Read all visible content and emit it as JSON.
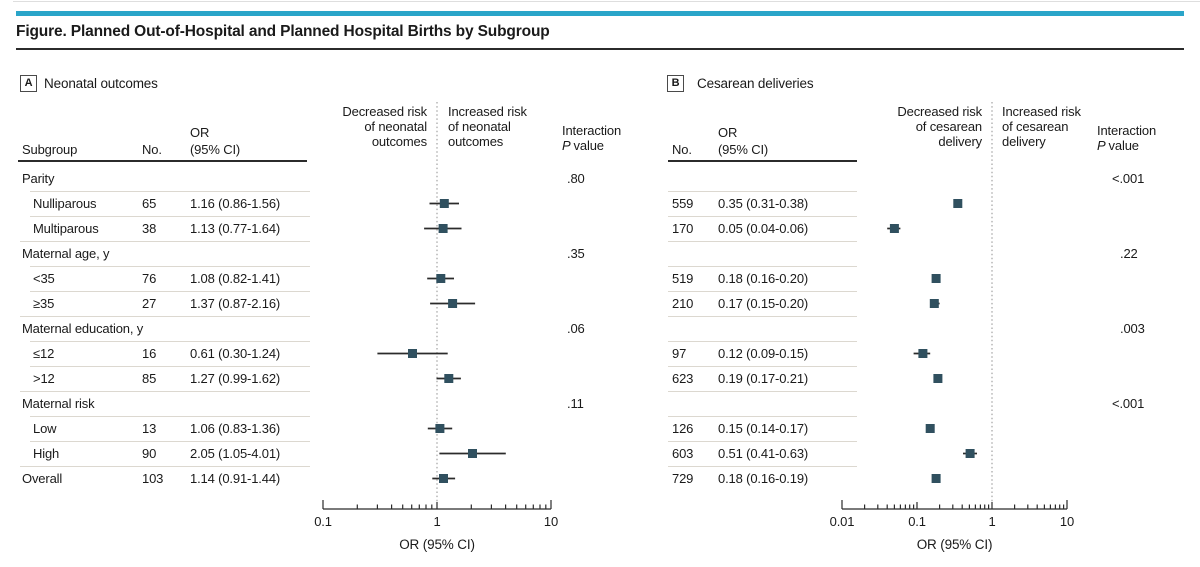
{
  "figure": {
    "title": "Figure. Planned Out-of-Hospital and Planned Hospital Births by Subgroup"
  },
  "colors": {
    "accent_teal": "#2AA5C9",
    "marker": "#30505F",
    "ci_line": "#2b2b2b",
    "rule_dark": "#2b2b2b",
    "row_separator": "#DCD8D0",
    "reference_line": "#8f8f8f",
    "text": "#1a1a1a"
  },
  "chart_data": [
    {
      "type": "forest",
      "panel_letter": "A",
      "panel_title": "Neonatal outcomes",
      "columns": {
        "subgroup": "Subgroup",
        "no": "No.",
        "or1": "OR",
        "or2": "(95% CI)"
      },
      "decreased_label": [
        "Decreased risk",
        "of neonatal",
        "outcomes"
      ],
      "increased_label": [
        "Increased risk",
        "of neonatal",
        "outcomes"
      ],
      "interaction_label": {
        "line1": "Interaction",
        "p": "P",
        "rest": "value"
      },
      "xlabel": "OR (95% CI)",
      "log_scale": true,
      "xlim": [
        0.1,
        10
      ],
      "x_ticks": [
        0.1,
        1,
        10
      ],
      "x_tick_labels": [
        "0.1",
        "1",
        "10"
      ],
      "ref_line": 1,
      "rows": [
        {
          "kind": "group",
          "label": "Parity",
          "p": ".80"
        },
        {
          "kind": "item",
          "label": "Nulliparous",
          "n": "65",
          "or_ci": "1.16 (0.86-1.56)",
          "est": 1.16,
          "lo": 0.86,
          "hi": 1.56
        },
        {
          "kind": "item",
          "label": "Multiparous",
          "n": "38",
          "or_ci": "1.13 (0.77-1.64)",
          "est": 1.13,
          "lo": 0.77,
          "hi": 1.64
        },
        {
          "kind": "group",
          "label": "Maternal age, y",
          "p": ".35"
        },
        {
          "kind": "item",
          "label": "<35",
          "n": "76",
          "or_ci": "1.08 (0.82-1.41)",
          "est": 1.08,
          "lo": 0.82,
          "hi": 1.41
        },
        {
          "kind": "item",
          "label": "≥35",
          "n": "27",
          "or_ci": "1.37 (0.87-2.16)",
          "est": 1.37,
          "lo": 0.87,
          "hi": 2.16
        },
        {
          "kind": "group",
          "label": "Maternal education, y",
          "p": ".06"
        },
        {
          "kind": "item",
          "label": "≤12",
          "n": "16",
          "or_ci": "0.61 (0.30-1.24)",
          "est": 0.61,
          "lo": 0.3,
          "hi": 1.24
        },
        {
          "kind": "item",
          "label": ">12",
          "n": "85",
          "or_ci": "1.27 (0.99-1.62)",
          "est": 1.27,
          "lo": 0.99,
          "hi": 1.62
        },
        {
          "kind": "group",
          "label": "Maternal risk",
          "p": ".11"
        },
        {
          "kind": "item",
          "label": "Low",
          "n": "13",
          "or_ci": "1.06 (0.83-1.36)",
          "est": 1.06,
          "lo": 0.83,
          "hi": 1.36
        },
        {
          "kind": "item",
          "label": "High",
          "n": "90",
          "or_ci": "2.05 (1.05-4.01)",
          "est": 2.05,
          "lo": 1.05,
          "hi": 4.01
        },
        {
          "kind": "overall",
          "label": "Overall",
          "n": "103",
          "or_ci": "1.14 (0.91-1.44)",
          "est": 1.14,
          "lo": 0.91,
          "hi": 1.44
        }
      ]
    },
    {
      "type": "forest",
      "panel_letter": "B",
      "panel_title": "Cesarean deliveries",
      "columns": {
        "no": "No.",
        "or1": "OR",
        "or2": "(95% CI)"
      },
      "decreased_label": [
        "Decreased risk",
        "of cesarean",
        "delivery"
      ],
      "increased_label": [
        "Increased risk",
        "of cesarean",
        "delivery"
      ],
      "interaction_label": {
        "line1": "Interaction",
        "p": "P",
        "rest": "value"
      },
      "xlabel": "OR (95% CI)",
      "log_scale": true,
      "xlim": [
        0.01,
        10
      ],
      "x_ticks": [
        0.01,
        0.1,
        1,
        10
      ],
      "x_tick_labels": [
        "0.01",
        "0.1",
        "1",
        "10"
      ],
      "ref_line": 1,
      "rows": [
        {
          "kind": "group",
          "p": "<.001"
        },
        {
          "kind": "item",
          "n": "559",
          "or_ci": "0.35 (0.31-0.38)",
          "est": 0.35,
          "lo": 0.31,
          "hi": 0.38
        },
        {
          "kind": "item",
          "n": "170",
          "or_ci": "0.05 (0.04-0.06)",
          "est": 0.05,
          "lo": 0.04,
          "hi": 0.06
        },
        {
          "kind": "group",
          "p": ".22"
        },
        {
          "kind": "item",
          "n": "519",
          "or_ci": "0.18 (0.16-0.20)",
          "est": 0.18,
          "lo": 0.16,
          "hi": 0.2
        },
        {
          "kind": "item",
          "n": "210",
          "or_ci": "0.17 (0.15-0.20)",
          "est": 0.17,
          "lo": 0.15,
          "hi": 0.2
        },
        {
          "kind": "group",
          "p": ".003"
        },
        {
          "kind": "item",
          "n": "97",
          "or_ci": "0.12 (0.09-0.15)",
          "est": 0.12,
          "lo": 0.09,
          "hi": 0.15
        },
        {
          "kind": "item",
          "n": "623",
          "or_ci": "0.19 (0.17-0.21)",
          "est": 0.19,
          "lo": 0.17,
          "hi": 0.21
        },
        {
          "kind": "group",
          "p": "<.001"
        },
        {
          "kind": "item",
          "n": "126",
          "or_ci": "0.15 (0.14-0.17)",
          "est": 0.15,
          "lo": 0.14,
          "hi": 0.17
        },
        {
          "kind": "item",
          "n": "603",
          "or_ci": "0.51 (0.41-0.63)",
          "est": 0.51,
          "lo": 0.41,
          "hi": 0.63
        },
        {
          "kind": "overall",
          "n": "729",
          "or_ci": "0.18 (0.16-0.19)",
          "est": 0.18,
          "lo": 0.16,
          "hi": 0.19
        }
      ]
    }
  ]
}
